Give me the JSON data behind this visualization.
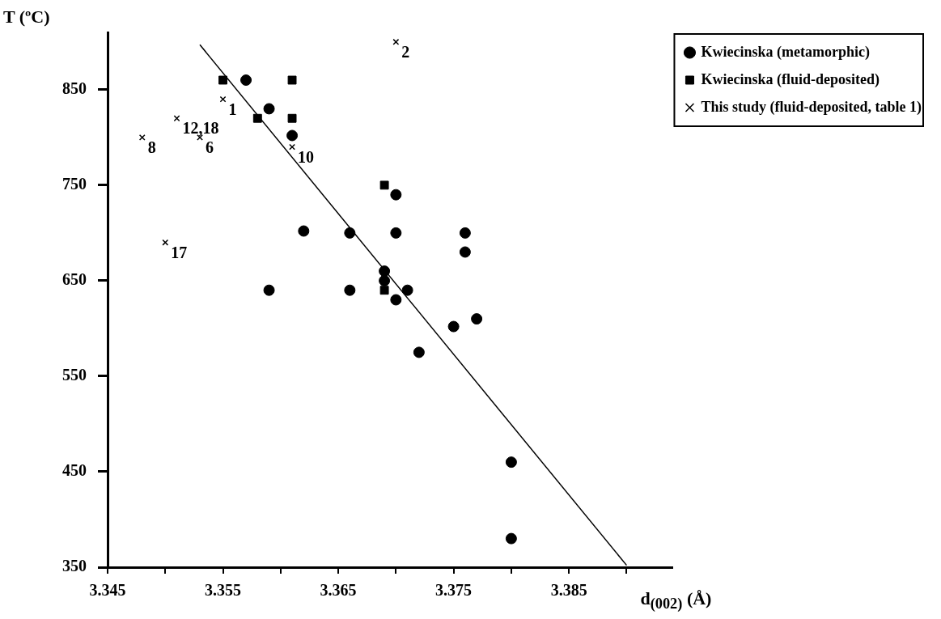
{
  "chart_data": {
    "type": "scatter",
    "ylabel": "T (ºC)",
    "xlabel": "d$_{(002)}$ (Å)",
    "xlim": [
      3.345,
      3.394
    ],
    "ylim": [
      350,
      910
    ],
    "xticks": [
      3.345,
      {
        "value": 3.35,
        "label": null
      },
      3.355,
      {
        "value": 3.36,
        "label": null
      },
      3.365,
      {
        "value": 3.37,
        "label": null
      },
      3.375,
      {
        "value": 3.38,
        "label": null
      },
      3.385,
      {
        "value": 3.39,
        "label": null
      }
    ],
    "yticks": [
      350,
      450,
      550,
      650,
      750,
      850
    ],
    "grid": false,
    "legend": "top right",
    "series": [
      {
        "name": "Kwiecinska (metamorphic)",
        "color": "#000000",
        "marker": "circle",
        "x": [
          3.357,
          3.359,
          3.361,
          3.362,
          3.359,
          3.366,
          3.366,
          3.37,
          3.37,
          3.376,
          3.376,
          3.369,
          3.369,
          3.371,
          3.37,
          3.375,
          3.377,
          3.372,
          3.38,
          3.38
        ],
        "values": [
          860,
          830,
          802,
          702,
          640,
          640,
          700,
          740,
          700,
          700,
          680,
          660,
          650,
          640,
          630,
          602,
          610,
          575,
          460,
          380
        ]
      },
      {
        "name": "Kwiecinska (fluid-deposited)",
        "color": "#000000",
        "marker": "square",
        "x": [
          3.355,
          3.358,
          3.361,
          3.361,
          3.369,
          3.369
        ],
        "values": [
          860,
          820,
          860,
          820,
          750,
          640
        ]
      },
      {
        "name": "This study (fluid-deposited, table 1)",
        "color": "#000000",
        "marker": "cross",
        "x": [
          3.37,
          3.355,
          3.351,
          3.348,
          3.353,
          3.361,
          3.35
        ],
        "values": [
          900,
          840,
          820,
          800,
          800,
          790,
          690
        ]
      },
      {
        "type": "line",
        "color": "#000000",
        "marker": "none",
        "line_style": "solid",
        "x": [
          3.353,
          3.39
        ],
        "values": [
          897,
          352
        ]
      }
    ],
    "annotations": [
      {
        "text": "2",
        "x": 3.37,
        "y": 900
      },
      {
        "text": "1",
        "x": 3.355,
        "y": 840
      },
      {
        "text": "12,18",
        "x": 3.351,
        "y": 820
      },
      {
        "text": "8",
        "x": 3.348,
        "y": 800
      },
      {
        "text": "6",
        "x": 3.353,
        "y": 800
      },
      {
        "text": "10",
        "x": 3.361,
        "y": 790
      },
      {
        "text": "17",
        "x": 3.35,
        "y": 690
      }
    ]
  }
}
